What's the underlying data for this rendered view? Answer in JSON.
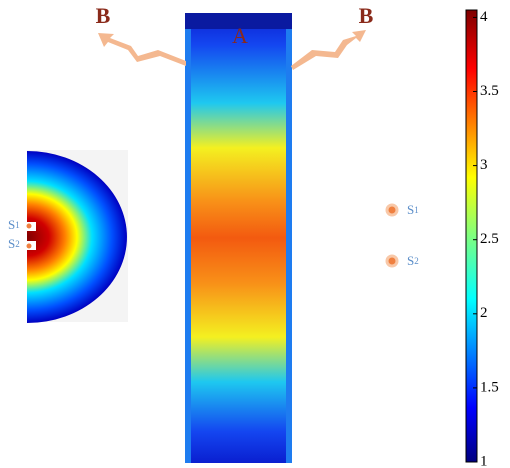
{
  "labels": {
    "a": "A",
    "b_left": "B",
    "b_right": "B"
  },
  "probe_labels": {
    "s1": {
      "main": "S",
      "sub": "1"
    },
    "s2": {
      "main": "S",
      "sub": "2"
    }
  },
  "colorbar": {
    "range": [
      1,
      4.05
    ],
    "ticks": [
      1,
      1.5,
      2,
      2.5,
      3,
      3.5,
      4
    ]
  }
}
